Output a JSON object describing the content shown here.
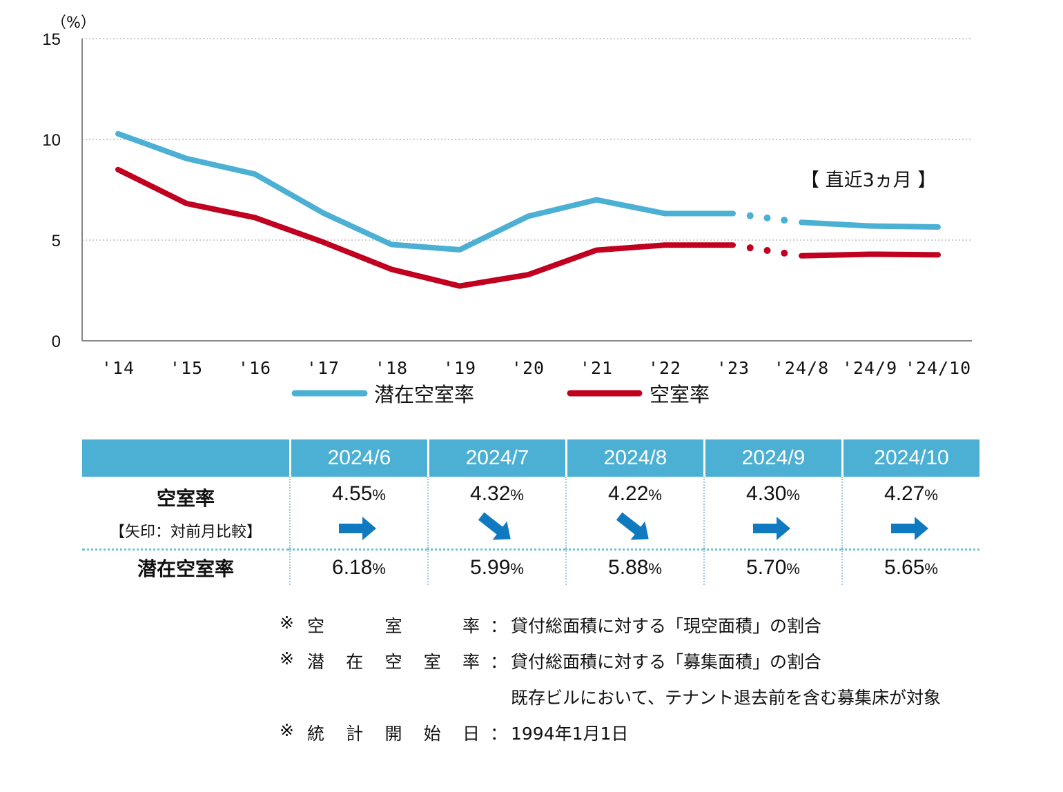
{
  "chart_data": {
    "type": "line",
    "y_unit": "（%）",
    "ylim": [
      0,
      15
    ],
    "yticks": [
      0,
      5,
      10,
      15
    ],
    "categories": [
      "'14",
      "'15",
      "'16",
      "'17",
      "'18",
      "'19",
      "'20",
      "'21",
      "'22",
      "'23",
      "'24/8",
      "'24/9",
      "'24/10"
    ],
    "series": [
      {
        "name": "潜在空室率",
        "color": "#4bb0d3",
        "values": [
          10.28,
          9.05,
          8.28,
          6.35,
          4.78,
          4.52,
          6.18,
          7.0,
          6.32,
          6.32,
          5.88,
          5.7,
          5.65
        ]
      },
      {
        "name": "空室率",
        "color": "#c0001e",
        "values": [
          8.5,
          6.82,
          6.12,
          4.9,
          3.55,
          2.72,
          3.28,
          4.5,
          4.75,
          4.75,
          4.22,
          4.3,
          4.27
        ]
      }
    ],
    "dotted_segment_between": [
      "'23",
      "'24/8"
    ],
    "annotation": "【 直近3ヵ月 】",
    "grid": "horizontal dotted",
    "legend_position": "bottom"
  },
  "table": {
    "headers": [
      "2024/6",
      "2024/7",
      "2024/8",
      "2024/9",
      "2024/10"
    ],
    "rate_label": "空室率",
    "rate_sub": "【矢印：対前月比較】",
    "potential_label": "潜在空室率",
    "pct_unit": "%",
    "vacancy": [
      "4.55",
      "4.32",
      "4.22",
      "4.30",
      "4.27"
    ],
    "arrows": [
      "flat",
      "down",
      "down",
      "flat",
      "flat"
    ],
    "potential": [
      "6.18",
      "5.99",
      "5.88",
      "5.70",
      "5.65"
    ],
    "arrow_color": "#0f7ac0"
  },
  "notes": [
    {
      "mark": "※",
      "term": [
        "空",
        "室",
        "率"
      ],
      "colon": "：",
      "desc": "貸付総面積に対する「現空面積」の割合"
    },
    {
      "mark": "※",
      "term": [
        "潜",
        "在",
        "空",
        "室",
        "率"
      ],
      "colon": "：",
      "desc": "貸付総面積に対する「募集面積」の割合"
    },
    {
      "mark": "",
      "term": [],
      "colon": "",
      "desc": "既存ビルにおいて、テナント退去前を含む募集床が対象"
    },
    {
      "mark": "※",
      "term": [
        "統",
        "計",
        "開",
        "始",
        "日"
      ],
      "colon": "：",
      "desc": "1994年1月1日"
    }
  ]
}
